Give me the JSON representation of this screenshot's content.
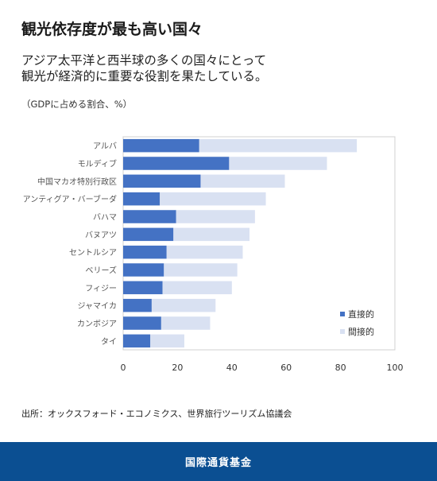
{
  "header": {
    "title": "観光依存度が最も高い国々",
    "subtitle_line1": "アジア太平洋と西半球の多くの国々にとって",
    "subtitle_line2": "観光が経済的に重要な役割を果たしている。",
    "unit": "（GDPに占める割合、%）"
  },
  "chart_data": {
    "type": "bar",
    "orientation": "horizontal",
    "stacked": true,
    "categories": [
      "アルバ",
      "モルディブ",
      "中国マカオ特別行政区",
      "アンティグア・バーブーダ",
      "バハマ",
      "バヌアツ",
      "セントルシア",
      "ベリーズ",
      "フィジー",
      "ジャマイカ",
      "カンボジア",
      "タイ"
    ],
    "series": [
      {
        "name": "直接的",
        "color": "#4472c4",
        "values": [
          28,
          39,
          28.5,
          13.5,
          19.5,
          18.5,
          16,
          15,
          14.5,
          10.5,
          14,
          10
        ]
      },
      {
        "name": "間接的",
        "color": "#d9e1f2",
        "values": [
          58,
          36,
          31,
          39,
          29,
          28,
          28,
          27,
          25.5,
          23.5,
          18,
          12.5
        ]
      }
    ],
    "xlim": [
      0,
      100
    ],
    "xticks": [
      0,
      20,
      40,
      60,
      80,
      100
    ],
    "legend_position": "bottom-right",
    "grid": false
  },
  "source": "出所：オックスフォード・エコノミクス、世界旅行ツーリズム協議会",
  "footer": {
    "org": "国際通貨基金",
    "bg_color": "#0b4f92"
  }
}
